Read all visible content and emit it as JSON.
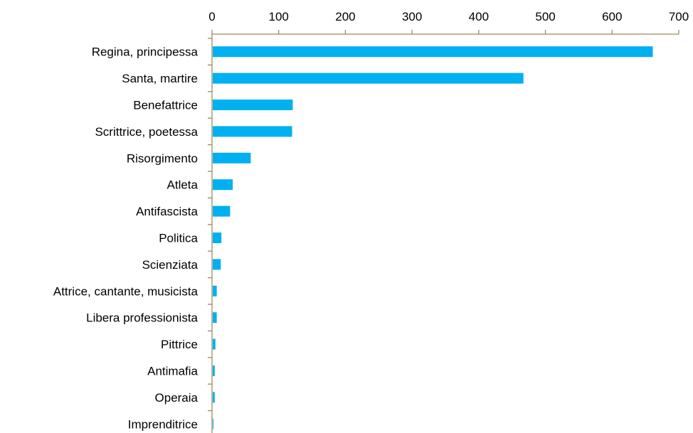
{
  "chart_data": {
    "type": "bar",
    "orientation": "horizontal",
    "title": "",
    "xlabel": "",
    "ylabel": "",
    "xlim": [
      0,
      700
    ],
    "x_ticks": [
      0,
      100,
      200,
      300,
      400,
      500,
      600,
      700
    ],
    "x_axis_position": "top",
    "grid": false,
    "bar_color": "#00b0f0",
    "axis_color": "#9b8c5a",
    "categories": [
      "Regina, principessa",
      "Santa, martire",
      "Benefattrice",
      "Scrittrice, poetessa",
      "Risorgimento",
      "Atleta",
      "Antifascista",
      "Politica",
      "Scienziata",
      "Attrice, cantante, musicista",
      "Libera professionista",
      "Pittrice",
      "Antimafia",
      "Operaia",
      "Imprenditrice"
    ],
    "values": [
      660,
      466,
      120,
      119,
      57,
      30,
      26,
      13,
      12,
      6,
      6,
      4,
      3,
      3,
      1
    ]
  }
}
